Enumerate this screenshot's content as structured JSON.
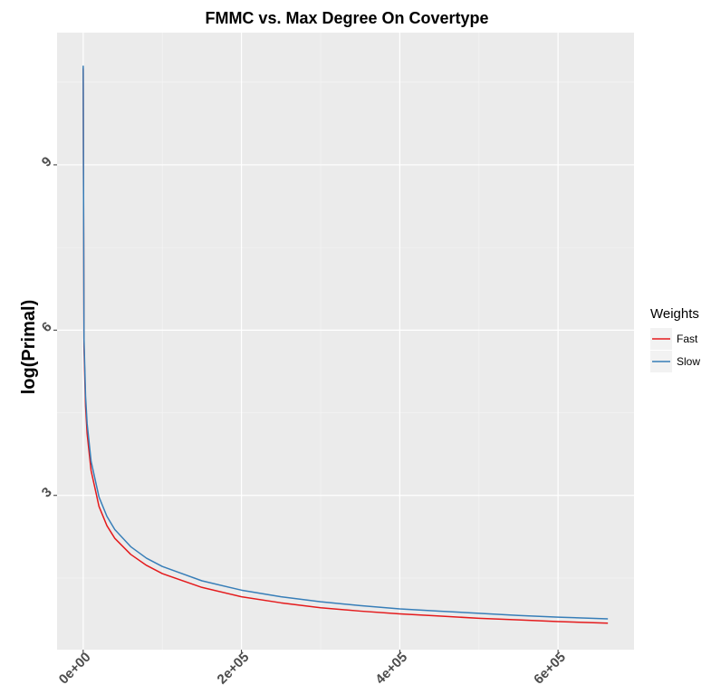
{
  "chart_data": {
    "type": "line",
    "title": "FMMC vs. Max Degree On Covertype",
    "xlabel": "",
    "ylabel": "log(Primal)",
    "xlim": [
      -33000,
      696000
    ],
    "ylim": [
      0.2,
      11.4
    ],
    "x_ticks": [
      0,
      200000,
      400000,
      600000
    ],
    "x_tick_labels": [
      "0e+00",
      "2e+05",
      "4e+05",
      "6e+05"
    ],
    "y_ticks": [
      3,
      6,
      9
    ],
    "y_tick_labels": [
      "3",
      "6",
      "9"
    ],
    "grid": true,
    "legend": {
      "title": "Weights",
      "position": "right"
    },
    "series": [
      {
        "name": "Fast",
        "color": "#e41a1c",
        "x": [
          0,
          1000,
          3000,
          5000,
          10000,
          20000,
          30000,
          40000,
          60000,
          80000,
          100000,
          150000,
          200000,
          250000,
          300000,
          350000,
          400000,
          450000,
          500000,
          550000,
          600000,
          663000
        ],
        "y": [
          10.75,
          5.7,
          4.62,
          4.12,
          3.45,
          2.8,
          2.45,
          2.22,
          1.93,
          1.73,
          1.58,
          1.33,
          1.16,
          1.05,
          0.96,
          0.9,
          0.85,
          0.81,
          0.77,
          0.74,
          0.71,
          0.68
        ]
      },
      {
        "name": "Slow",
        "color": "#377eb8",
        "x": [
          0,
          1000,
          3000,
          5000,
          10000,
          20000,
          30000,
          40000,
          60000,
          80000,
          100000,
          150000,
          200000,
          250000,
          300000,
          350000,
          400000,
          450000,
          500000,
          550000,
          600000,
          663000
        ],
        "y": [
          10.8,
          5.85,
          4.8,
          4.3,
          3.62,
          2.97,
          2.62,
          2.38,
          2.07,
          1.86,
          1.71,
          1.45,
          1.28,
          1.16,
          1.07,
          1.0,
          0.94,
          0.9,
          0.86,
          0.82,
          0.79,
          0.76
        ]
      }
    ]
  }
}
